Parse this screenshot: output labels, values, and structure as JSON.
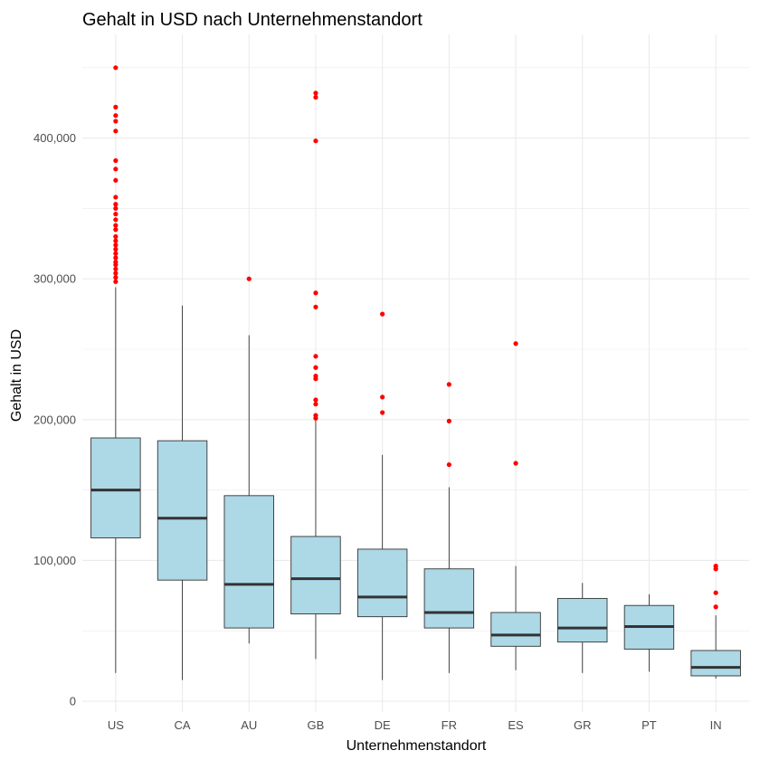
{
  "chart_data": {
    "type": "boxplot",
    "title": "Gehalt in USD nach Unternehmenstandort",
    "xlabel": "Unternehmenstandort",
    "ylabel": "Gehalt in USD",
    "ylim": [
      0,
      460000
    ],
    "yticks": [
      0,
      100000,
      200000,
      300000,
      400000
    ],
    "ytick_labels": [
      "0",
      "100,000",
      "200,000",
      "300,000",
      "400,000"
    ],
    "grid": true,
    "colors": {
      "box_fill": "#add8e6",
      "box_stroke": "#333333",
      "median": "#333333",
      "outlier": "#ff0000",
      "grid": "#ebebeb"
    },
    "categories": [
      "US",
      "CA",
      "AU",
      "GB",
      "DE",
      "FR",
      "ES",
      "GR",
      "PT",
      "IN"
    ],
    "boxes": [
      {
        "category": "US",
        "min": 20000,
        "q1": 116000,
        "median": 150000,
        "q3": 187000,
        "max": 294000,
        "outliers": [
          450000,
          422000,
          416000,
          412000,
          405000,
          384000,
          378000,
          370000,
          358000,
          353000,
          350000,
          346000,
          342000,
          338000,
          335000,
          330000,
          327000,
          324000,
          321000,
          318000,
          315000,
          312000,
          310000,
          307000,
          304000,
          301000,
          298000
        ]
      },
      {
        "category": "CA",
        "min": 15000,
        "q1": 86000,
        "median": 130000,
        "q3": 185000,
        "max": 281000,
        "outliers": []
      },
      {
        "category": "AU",
        "min": 41000,
        "q1": 52000,
        "median": 83000,
        "q3": 146000,
        "max": 260000,
        "outliers": [
          300000
        ]
      },
      {
        "category": "GB",
        "min": 30000,
        "q1": 62000,
        "median": 87000,
        "q3": 117000,
        "max": 200000,
        "outliers": [
          432000,
          429000,
          398000,
          290000,
          280000,
          245000,
          237000,
          231000,
          229000,
          214000,
          211000,
          203000,
          201000
        ]
      },
      {
        "category": "DE",
        "min": 15000,
        "q1": 60000,
        "median": 74000,
        "q3": 108000,
        "max": 175000,
        "outliers": [
          275000,
          216000,
          205000
        ]
      },
      {
        "category": "FR",
        "min": 20000,
        "q1": 52000,
        "median": 63000,
        "q3": 94000,
        "max": 152000,
        "outliers": [
          225000,
          199000,
          168000
        ]
      },
      {
        "category": "ES",
        "min": 22000,
        "q1": 39000,
        "median": 47000,
        "q3": 63000,
        "max": 96000,
        "outliers": [
          254000,
          169000
        ]
      },
      {
        "category": "GR",
        "min": 20000,
        "q1": 42000,
        "median": 52000,
        "q3": 73000,
        "max": 84000,
        "outliers": []
      },
      {
        "category": "PT",
        "min": 21000,
        "q1": 37000,
        "median": 53000,
        "q3": 68000,
        "max": 76000,
        "outliers": []
      },
      {
        "category": "IN",
        "min": 16000,
        "q1": 18000,
        "median": 24000,
        "q3": 36000,
        "max": 61000,
        "outliers": [
          96000,
          94000,
          77000,
          67000
        ]
      }
    ]
  }
}
